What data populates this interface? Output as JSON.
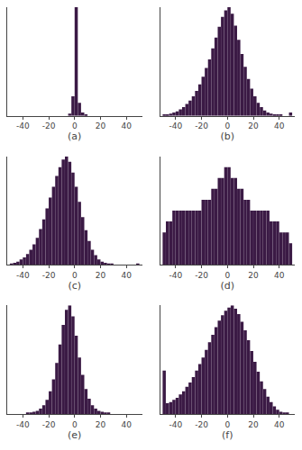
{
  "chart_data": [
    {
      "type": "histogram",
      "xlabel": "(a)",
      "color": "#3b1a45",
      "bins": [
        -50,
        -47.5,
        -45,
        -42.5,
        -40,
        -37.5,
        -35,
        -32.5,
        -30,
        -27.5,
        -25,
        -22.5,
        -20,
        -17.5,
        -15,
        -12.5,
        -10,
        -7.5,
        -5,
        -2.5,
        0,
        2.5,
        5,
        7.5,
        10,
        12.5,
        15,
        17.5,
        20,
        22.5,
        25,
        27.5,
        30,
        32.5,
        35,
        37.5,
        40,
        42.5,
        45,
        47.5,
        50
      ],
      "values": [
        0,
        0,
        0,
        0,
        0,
        0,
        0,
        0,
        0,
        0,
        0,
        0,
        0,
        0,
        0,
        0,
        0,
        0,
        2,
        18,
        100,
        12,
        3,
        1,
        0,
        0,
        0,
        0,
        0,
        0,
        0,
        0,
        0,
        0,
        0,
        0,
        0,
        0,
        0,
        0
      ],
      "xlim": [
        -52,
        52
      ],
      "xticks": [
        -40,
        -20,
        0,
        20,
        40
      ],
      "ylim": [
        0,
        100
      ],
      "grid": false,
      "tick_labels": "x"
    },
    {
      "type": "histogram",
      "xlabel": "(b)",
      "color": "#3b1a45",
      "bins": [
        -50,
        -47.5,
        -45,
        -42.5,
        -40,
        -37.5,
        -35,
        -32.5,
        -30,
        -27.5,
        -25,
        -22.5,
        -20,
        -17.5,
        -15,
        -12.5,
        -10,
        -7.5,
        -5,
        -2.5,
        0,
        2.5,
        5,
        7.5,
        10,
        12.5,
        15,
        17.5,
        20,
        22.5,
        25,
        27.5,
        30,
        32.5,
        35,
        37.5,
        40,
        42.5,
        45,
        47.5,
        50
      ],
      "values": [
        1,
        1,
        2,
        3,
        4,
        6,
        8,
        11,
        14,
        18,
        23,
        29,
        36,
        44,
        52,
        62,
        72,
        82,
        91,
        97,
        100,
        94,
        83,
        70,
        57,
        45,
        34,
        25,
        18,
        12,
        8,
        5,
        3,
        2,
        1,
        1,
        1,
        0,
        0,
        3
      ],
      "xlim": [
        -52,
        52
      ],
      "xticks": [
        -40,
        -20,
        0,
        20,
        40
      ],
      "ylim": [
        0,
        100
      ],
      "grid": false,
      "tick_labels": "x"
    },
    {
      "type": "histogram",
      "xlabel": "(c)",
      "color": "#3b1a45",
      "bins": [
        -50,
        -47.5,
        -45,
        -42.5,
        -40,
        -37.5,
        -35,
        -32.5,
        -30,
        -27.5,
        -25,
        -22.5,
        -20,
        -17.5,
        -15,
        -12.5,
        -10,
        -7.5,
        -5,
        -2.5,
        0,
        2.5,
        5,
        7.5,
        10,
        12.5,
        15,
        17.5,
        20,
        22.5,
        25,
        27.5,
        30,
        32.5,
        35,
        37.5,
        40,
        42.5,
        45,
        47.5,
        50
      ],
      "values": [
        1,
        2,
        3,
        5,
        7,
        10,
        14,
        19,
        25,
        33,
        42,
        52,
        62,
        72,
        82,
        90,
        97,
        100,
        95,
        85,
        72,
        58,
        44,
        32,
        22,
        14,
        9,
        5,
        3,
        2,
        1,
        1,
        0,
        0,
        0,
        0,
        0,
        0,
        0,
        1
      ],
      "xlim": [
        -52,
        52
      ],
      "xticks": [
        -40,
        -20,
        0,
        20,
        40
      ],
      "ylim": [
        0,
        100
      ],
      "grid": false,
      "tick_labels": "x"
    },
    {
      "type": "histogram",
      "xlabel": "(d)",
      "color": "#3b1a45",
      "bins": [
        -50,
        -47.5,
        -45,
        -42.5,
        -40,
        -37.5,
        -35,
        -32.5,
        -30,
        -27.5,
        -25,
        -22.5,
        -20,
        -17.5,
        -15,
        -12.5,
        -10,
        -7.5,
        -5,
        -2.5,
        0,
        2.5,
        5,
        7.5,
        10,
        12.5,
        15,
        17.5,
        20,
        22.5,
        25,
        27.5,
        30,
        32.5,
        35,
        37.5,
        40,
        42.5,
        45,
        47.5,
        50
      ],
      "values": [
        3,
        4,
        4,
        5,
        5,
        5,
        5,
        5,
        5,
        5,
        5,
        5,
        6,
        6,
        6,
        7,
        7,
        8,
        8,
        9,
        9,
        8,
        8,
        7,
        7,
        6,
        6,
        5,
        5,
        5,
        5,
        5,
        5,
        4,
        4,
        4,
        3,
        3,
        3,
        2
      ],
      "xlim": [
        -52,
        52
      ],
      "xticks": [
        -40,
        -20,
        0,
        20,
        40
      ],
      "ylim": [
        0,
        10
      ],
      "grid": false,
      "tick_labels": "x"
    },
    {
      "type": "histogram",
      "xlabel": "(e)",
      "color": "#3b1a45",
      "bins": [
        -50,
        -47.5,
        -45,
        -42.5,
        -40,
        -37.5,
        -35,
        -32.5,
        -30,
        -27.5,
        -25,
        -22.5,
        -20,
        -17.5,
        -15,
        -12.5,
        -10,
        -7.5,
        -5,
        -2.5,
        0,
        2.5,
        5,
        7.5,
        10,
        12.5,
        15,
        17.5,
        20,
        22.5,
        25,
        27.5,
        30,
        32.5,
        35,
        37.5,
        40,
        42.5,
        45,
        47.5,
        50
      ],
      "values": [
        0,
        0,
        0,
        0,
        0,
        1,
        1,
        2,
        3,
        5,
        8,
        13,
        21,
        32,
        47,
        64,
        82,
        96,
        100,
        90,
        72,
        52,
        36,
        23,
        14,
        8,
        5,
        3,
        2,
        1,
        1,
        0,
        0,
        0,
        0,
        0,
        0,
        0,
        0,
        0
      ],
      "xlim": [
        -52,
        52
      ],
      "xticks": [
        -40,
        -20,
        0,
        20,
        40
      ],
      "ylim": [
        0,
        100
      ],
      "grid": false,
      "tick_labels": "x"
    },
    {
      "type": "histogram",
      "xlabel": "(f)",
      "color": "#3b1a45",
      "bins": [
        -50,
        -47.5,
        -45,
        -42.5,
        -40,
        -37.5,
        -35,
        -32.5,
        -30,
        -27.5,
        -25,
        -22.5,
        -20,
        -17.5,
        -15,
        -12.5,
        -10,
        -7.5,
        -5,
        -2.5,
        0,
        2.5,
        5,
        7.5,
        10,
        12.5,
        15,
        17.5,
        20,
        22.5,
        25,
        27.5,
        30,
        32.5,
        35,
        37.5,
        40,
        42.5,
        45,
        47.5,
        50
      ],
      "values": [
        40,
        10,
        11,
        13,
        15,
        18,
        21,
        25,
        29,
        34,
        40,
        46,
        52,
        59,
        66,
        73,
        80,
        86,
        91,
        95,
        98,
        100,
        97,
        92,
        85,
        77,
        68,
        58,
        48,
        39,
        30,
        23,
        16,
        11,
        7,
        4,
        2,
        1,
        1,
        0
      ],
      "xlim": [
        -52,
        52
      ],
      "xticks": [
        -40,
        -20,
        0,
        20,
        40
      ],
      "ylim": [
        0,
        100
      ],
      "grid": false,
      "tick_labels": "x"
    }
  ]
}
